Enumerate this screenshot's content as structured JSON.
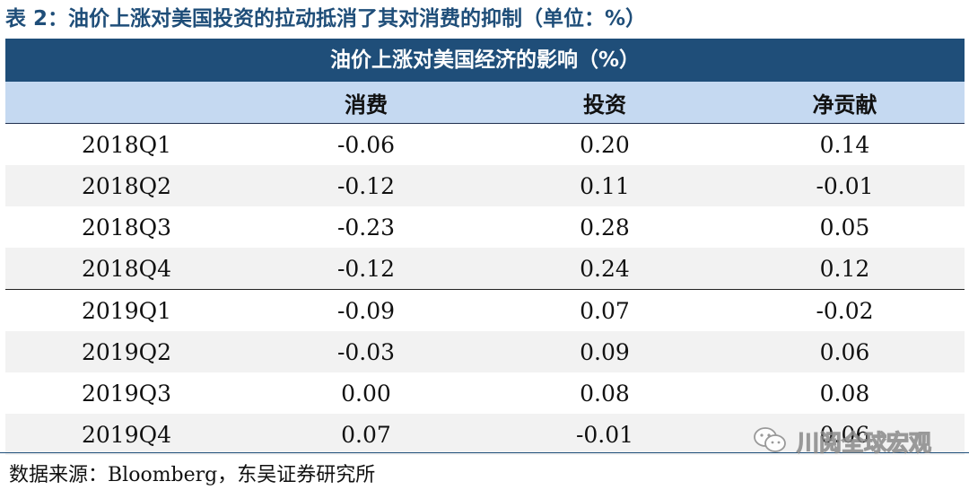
{
  "caption": "表 2：油价上涨对美国投资的拉动抵消了其对消费的抑制（单位：%）",
  "table": {
    "title": "油价上涨对美国经济的影响（%）",
    "headers": [
      "",
      "消费",
      "投资",
      "净贡献"
    ],
    "rows": [
      [
        "2018Q1",
        "-0.06",
        "0.20",
        "0.14"
      ],
      [
        "2018Q2",
        "-0.12",
        "0.11",
        "-0.01"
      ],
      [
        "2018Q3",
        "-0.23",
        "0.28",
        "0.05"
      ],
      [
        "2018Q4",
        "-0.12",
        "0.24",
        "0.12"
      ],
      [
        "2019Q1",
        "-0.09",
        "0.07",
        "-0.02"
      ],
      [
        "2019Q2",
        "-0.03",
        "0.09",
        "0.06"
      ],
      [
        "2019Q3",
        "0.00",
        "0.08",
        "0.08"
      ],
      [
        "2019Q4",
        "0.07",
        "-0.01",
        "0.06"
      ]
    ]
  },
  "source": "数据来源：Bloomberg，东吴证券研究所",
  "watermark": {
    "text": "川阅全球宏观",
    "icon": "wechat-icon"
  }
}
